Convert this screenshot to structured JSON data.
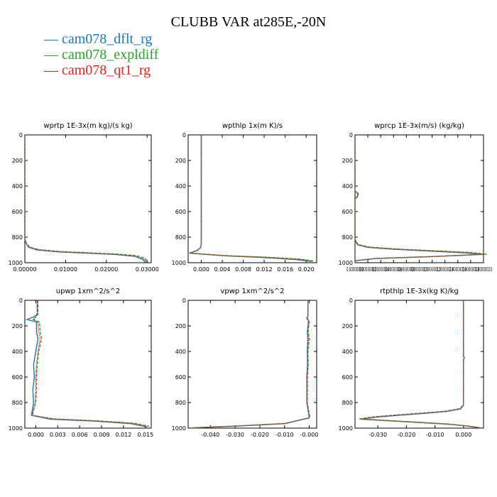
{
  "title": "CLUBB VAR at285E,-20N",
  "legend": [
    {
      "name": "cam078_dflt_rg",
      "color": "#1f77b4"
    },
    {
      "name": "cam078_expldiff",
      "color": "#2ca02c"
    },
    {
      "name": "cam078_qt1_rg",
      "color": "#d62728"
    }
  ],
  "chart_data": [
    {
      "type": "line",
      "title": "wprtp  1E-3x(m kg)/(s kg)",
      "xlim": [
        0,
        0.031
      ],
      "ylim": [
        1000,
        0
      ],
      "xticks": [
        0,
        0.01,
        0.02,
        0.03
      ],
      "xtick_labels": [
        "0.00000",
        "0.01000",
        "0.02000",
        "0.03000"
      ],
      "yticks": [
        0,
        200,
        400,
        600,
        800,
        1000
      ],
      "ytick_labels": [
        "0",
        "200",
        "400",
        "600",
        "800",
        "1000"
      ],
      "series": [
        {
          "name": "cam078_dflt_rg",
          "x": [
            0,
            0,
            0.0005,
            0.001,
            0.003,
            0.008,
            0.015,
            0.022,
            0.027,
            0.029,
            0.0295
          ],
          "y": [
            0,
            820,
            860,
            880,
            900,
            915,
            925,
            935,
            950,
            975,
            1000
          ]
        },
        {
          "name": "cam078_expldiff",
          "x": [
            0,
            0,
            0.0006,
            0.0012,
            0.0035,
            0.009,
            0.016,
            0.023,
            0.0275,
            0.0295,
            0.03
          ],
          "y": [
            0,
            820,
            858,
            878,
            898,
            913,
            923,
            933,
            945,
            965,
            995
          ]
        },
        {
          "name": "cam078_qt1_rg",
          "x": [
            0,
            0,
            0.0005,
            0.0011,
            0.0032,
            0.0085,
            0.0155,
            0.0225,
            0.027,
            0.0292,
            0.0298
          ],
          "y": [
            0,
            820,
            859,
            879,
            899,
            914,
            924,
            934,
            948,
            970,
            998
          ]
        }
      ]
    },
    {
      "type": "line",
      "title": "wpthlp  1x(m K)/s",
      "xlim": [
        -0.0025,
        0.022
      ],
      "ylim": [
        1000,
        0
      ],
      "xticks": [
        0,
        0.004,
        0.008,
        0.012,
        0.016,
        0.02
      ],
      "xtick_labels": [
        "0.000",
        "0.004",
        "0.008",
        "0.012",
        "0.016",
        "0.020"
      ],
      "yticks": [
        0,
        200,
        400,
        600,
        800,
        1000
      ],
      "ytick_labels": [
        "0",
        "200",
        "400",
        "600",
        "800",
        "1000"
      ],
      "series": [
        {
          "name": "cam078_dflt_rg",
          "x": [
            0,
            0,
            -0.0001,
            -0.0008,
            -0.0022,
            0.004,
            0.012,
            0.018,
            0.021
          ],
          "y": [
            0,
            850,
            880,
            905,
            925,
            945,
            960,
            975,
            990
          ]
        },
        {
          "name": "cam078_expldiff",
          "x": [
            0,
            0,
            -0.0001,
            -0.0009,
            -0.0023,
            0.0045,
            0.013,
            0.019,
            0.0215
          ],
          "y": [
            0,
            850,
            880,
            905,
            925,
            944,
            958,
            972,
            988
          ]
        },
        {
          "name": "cam078_qt1_rg",
          "x": [
            0,
            0,
            -0.0001,
            -0.0008,
            -0.0022,
            0.0042,
            0.0125,
            0.0185,
            0.0212
          ],
          "y": [
            0,
            850,
            880,
            905,
            925,
            945,
            959,
            974,
            989
          ]
        }
      ]
    },
    {
      "type": "line",
      "title": "wprcp  1E-3x(m/s) (kg/kg)",
      "xlim": [
        0,
        2e-07
      ],
      "ylim": [
        1000,
        0
      ],
      "xticks": [
        0,
        2e-08,
        4e-08,
        6e-08,
        8e-08,
        1e-07,
        1.2e-07,
        1.4e-07,
        1.6e-07,
        1.8e-07,
        2e-07
      ],
      "xtick_labels": [
        "0.00000000",
        "0.00000002",
        "0.00000004",
        "0.00000006",
        "0.00000008",
        "0.00000010",
        "0.00000012",
        "0.00000014",
        "0.00000016",
        "0.00000018",
        "0.00000020"
      ],
      "yticks": [
        0,
        200,
        400,
        600,
        800,
        1000
      ],
      "ytick_labels": [
        "0",
        "200",
        "400",
        "600",
        "800",
        "1000"
      ],
      "series": [
        {
          "name": "cam078_dflt_rg",
          "x": [
            0,
            0,
            4e-09,
            4e-09,
            0,
            0,
            4e-09,
            2e-08,
            6e-08,
            1.2e-07,
            1.7e-07,
            2e-07,
            1.2e-07,
            3e-08,
            0,
            0
          ],
          "y": [
            0,
            440,
            455,
            480,
            500,
            820,
            860,
            880,
            895,
            910,
            922,
            935,
            952,
            968,
            985,
            1000
          ]
        },
        {
          "name": "cam078_expldiff",
          "x": [
            0,
            0,
            5e-09,
            5e-09,
            0,
            0,
            5e-09,
            2.2e-08,
            6.5e-08,
            1.3e-07,
            1.8e-07,
            2.05e-07,
            1.3e-07,
            3.5e-08,
            0,
            0
          ],
          "y": [
            0,
            440,
            455,
            480,
            500,
            820,
            858,
            878,
            893,
            908,
            920,
            933,
            950,
            966,
            984,
            1000
          ]
        },
        {
          "name": "cam078_qt1_rg",
          "x": [
            0,
            0,
            4e-09,
            4e-09,
            0,
            0,
            4e-09,
            2.1e-08,
            6.2e-08,
            1.25e-07,
            1.75e-07,
            2e-07,
            1.25e-07,
            3.2e-08,
            0,
            0
          ],
          "y": [
            0,
            440,
            455,
            480,
            500,
            820,
            859,
            879,
            894,
            909,
            921,
            934,
            951,
            967,
            985,
            1000
          ]
        }
      ]
    },
    {
      "type": "line",
      "title": "upwp  1xm^2/s^2",
      "xlim": [
        -0.0015,
        0.0158
      ],
      "ylim": [
        1000,
        0
      ],
      "xticks": [
        0,
        0.003,
        0.006,
        0.009,
        0.012,
        0.015
      ],
      "xtick_labels": [
        "0.000",
        "0.003",
        "0.006",
        "0.009",
        "0.012",
        "0.015"
      ],
      "yticks": [
        0,
        200,
        400,
        600,
        800,
        1000
      ],
      "ytick_labels": [
        "0",
        "200",
        "400",
        "600",
        "800",
        "1000"
      ],
      "series": [
        {
          "name": "cam078_dflt_rg",
          "x": [
            0.0002,
            0.0002,
            -0.0003,
            -0.0012,
            0.0001,
            0.0001,
            0.0003,
            0,
            -0.0003,
            -0.0002,
            -0.0004,
            -0.0003,
            -0.0006,
            0.002,
            0.008,
            0.013,
            0.0152
          ],
          "y": [
            0,
            110,
            130,
            150,
            170,
            250,
            300,
            400,
            500,
            600,
            700,
            800,
            900,
            930,
            945,
            965,
            990
          ]
        },
        {
          "name": "cam078_expldiff",
          "x": [
            0.0003,
            0.0003,
            0,
            -0.0004,
            0.0005,
            0.0006,
            0.0008,
            0.0004,
            0.0002,
            0.0001,
            0.0001,
            0,
            -0.0005,
            0.0025,
            0.0085,
            0.0135,
            0.0155
          ],
          "y": [
            0,
            110,
            130,
            150,
            170,
            250,
            300,
            400,
            500,
            600,
            700,
            800,
            900,
            928,
            943,
            962,
            985
          ]
        },
        {
          "name": "cam078_qt1_rg",
          "x": [
            0.0002,
            0.0002,
            0,
            -0.0003,
            0.0003,
            0.0004,
            0.0006,
            0.0003,
            0.0001,
            0,
            0,
            -0.0001,
            -0.0005,
            0.0022,
            0.0082,
            0.0132,
            0.0153
          ],
          "y": [
            0,
            110,
            130,
            150,
            170,
            250,
            300,
            400,
            500,
            600,
            700,
            800,
            900,
            929,
            944,
            963,
            988
          ]
        }
      ]
    },
    {
      "type": "line",
      "title": "vpwp  1xm^2/s^2",
      "xlim": [
        -0.049,
        0.003
      ],
      "ylim": [
        1000,
        0
      ],
      "xticks": [
        -0.04,
        -0.03,
        -0.02,
        -0.01,
        0
      ],
      "xtick_labels": [
        "-0.040",
        "-0.030",
        "-0.020",
        "-0.010",
        "-0.000"
      ],
      "yticks": [
        0,
        200,
        400,
        600,
        800,
        1000
      ],
      "ytick_labels": [
        "0",
        "200",
        "400",
        "600",
        "800",
        "1000"
      ],
      "series": [
        {
          "name": "cam078_dflt_rg",
          "x": [
            -0.0005,
            -0.0005,
            -0.001,
            -0.0003,
            -0.0008,
            -0.0006,
            -0.0008,
            -0.0007,
            -0.001,
            -0.001,
            0,
            -0.01,
            -0.03,
            -0.047
          ],
          "y": [
            0,
            120,
            140,
            160,
            250,
            300,
            400,
            500,
            600,
            800,
            920,
            965,
            985,
            998
          ]
        },
        {
          "name": "cam078_expldiff",
          "x": [
            -0.0005,
            -0.0005,
            -0.0008,
            0,
            -0.0004,
            0.0001,
            -0.0005,
            -0.0004,
            -0.0007,
            -0.0008,
            0.0003,
            -0.0095,
            -0.029,
            -0.0465
          ],
          "y": [
            0,
            120,
            140,
            160,
            250,
            300,
            400,
            500,
            600,
            800,
            918,
            963,
            983,
            996
          ]
        },
        {
          "name": "cam078_qt1_rg",
          "x": [
            -0.0005,
            -0.0005,
            -0.0009,
            -0.0002,
            -0.0006,
            -0.0003,
            -0.0007,
            -0.0006,
            -0.0009,
            -0.0009,
            0.0001,
            -0.0098,
            -0.0295,
            -0.0468
          ],
          "y": [
            0,
            120,
            140,
            160,
            250,
            300,
            400,
            500,
            600,
            800,
            919,
            964,
            984,
            997
          ]
        }
      ]
    },
    {
      "type": "line",
      "title": "rtpthlp  1E-3x(kg K)/kg",
      "xlim": [
        -0.038,
        0.007
      ],
      "ylim": [
        1000,
        0
      ],
      "xticks": [
        -0.03,
        -0.02,
        -0.01,
        0
      ],
      "xtick_labels": [
        "-0.030",
        "-0.020",
        "-0.010",
        "0.000"
      ],
      "yticks": [
        0,
        200,
        400,
        600,
        800,
        1000
      ],
      "ytick_labels": [
        "0",
        "200",
        "400",
        "600",
        "800",
        "1000"
      ],
      "series": [
        {
          "name": "cam078_dflt_rg",
          "x": [
            0,
            0,
            0.0003,
            0,
            0,
            -0.001,
            -0.006,
            -0.014,
            -0.023,
            -0.031,
            -0.036,
            -0.02,
            -0.005,
            0.002,
            0.006
          ],
          "y": [
            0,
            440,
            450,
            460,
            820,
            850,
            870,
            885,
            900,
            915,
            930,
            950,
            970,
            985,
            998
          ]
        },
        {
          "name": "cam078_expldiff",
          "x": [
            0,
            0,
            0.0003,
            0,
            0,
            -0.0014,
            -0.0065,
            -0.015,
            -0.024,
            -0.032,
            -0.0365,
            -0.021,
            -0.0055,
            0.0018,
            0.0058
          ],
          "y": [
            0,
            440,
            450,
            460,
            820,
            848,
            868,
            883,
            898,
            913,
            928,
            948,
            968,
            984,
            997
          ]
        },
        {
          "name": "cam078_qt1_rg",
          "x": [
            0,
            0,
            0.0003,
            0,
            0,
            -0.0012,
            -0.0062,
            -0.0145,
            -0.0235,
            -0.0315,
            -0.036,
            -0.0205,
            -0.0052,
            0.0019,
            0.0059
          ],
          "y": [
            0,
            440,
            450,
            460,
            820,
            849,
            869,
            884,
            899,
            914,
            929,
            949,
            969,
            985,
            998
          ]
        }
      ]
    }
  ]
}
